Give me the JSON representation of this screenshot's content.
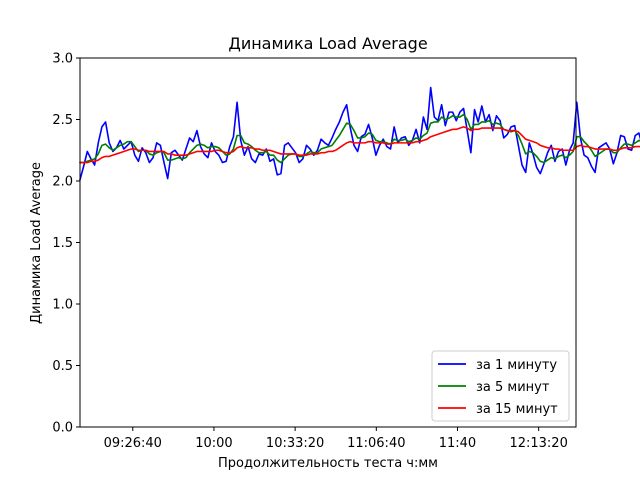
{
  "chart_data": {
    "type": "line",
    "title": "Динамика Load Average",
    "xlabel": "Продолжительность теста ч:мм",
    "ylabel": "Динамика Load Average",
    "ylim": [
      0,
      3.0
    ],
    "y_ticks": [
      "0.0",
      "0.5",
      "1.0",
      "1.5",
      "2.0",
      "2.5",
      "3.0"
    ],
    "x_range_seconds": [
      32700,
      44920
    ],
    "x_ticks": [
      {
        "label": "09:26:40",
        "value": 34000
      },
      {
        "label": "10:00",
        "value": 36000
      },
      {
        "label": "10:33:20",
        "value": 38000
      },
      {
        "label": "11:06:40",
        "value": 40000
      },
      {
        "label": "11:40",
        "value": 42000
      },
      {
        "label": "12:13:20",
        "value": 44000
      }
    ],
    "x_start": "09:05",
    "x_step_minutes": 1.5,
    "grid": false,
    "legend_position": "lower-right",
    "series": [
      {
        "name": "за 1 минуту",
        "color": "#0000ff",
        "values": [
          2.01,
          2.12,
          2.24,
          2.18,
          2.13,
          2.31,
          2.44,
          2.48,
          2.31,
          2.24,
          2.27,
          2.33,
          2.26,
          2.29,
          2.32,
          2.21,
          2.16,
          2.27,
          2.23,
          2.15,
          2.19,
          2.31,
          2.29,
          2.15,
          2.02,
          2.23,
          2.25,
          2.21,
          2.17,
          2.26,
          2.35,
          2.32,
          2.41,
          2.28,
          2.22,
          2.19,
          2.31,
          2.24,
          2.21,
          2.15,
          2.16,
          2.28,
          2.36,
          2.64,
          2.33,
          2.21,
          2.28,
          2.18,
          2.15,
          2.22,
          2.21,
          2.26,
          2.16,
          2.18,
          2.05,
          2.06,
          2.29,
          2.31,
          2.27,
          2.23,
          2.15,
          2.18,
          2.29,
          2.26,
          2.21,
          2.25,
          2.34,
          2.31,
          2.29,
          2.35,
          2.42,
          2.48,
          2.56,
          2.62,
          2.43,
          2.29,
          2.24,
          2.36,
          2.38,
          2.46,
          2.35,
          2.21,
          2.29,
          2.34,
          2.28,
          2.26,
          2.44,
          2.31,
          2.35,
          2.36,
          2.29,
          2.33,
          2.42,
          2.31,
          2.52,
          2.42,
          2.76,
          2.52,
          2.49,
          2.62,
          2.45,
          2.56,
          2.56,
          2.49,
          2.56,
          2.59,
          2.41,
          2.23,
          2.58,
          2.48,
          2.61,
          2.48,
          2.54,
          2.41,
          2.53,
          2.49,
          2.35,
          2.38,
          2.44,
          2.45,
          2.29,
          2.13,
          2.07,
          2.31,
          2.22,
          2.11,
          2.06,
          2.14,
          2.23,
          2.29,
          2.16,
          2.24,
          2.26,
          2.13,
          2.25,
          2.31,
          2.64,
          2.35,
          2.21,
          2.19,
          2.12,
          2.07,
          2.27,
          2.29,
          2.31,
          2.26,
          2.14,
          2.23,
          2.37,
          2.36,
          2.26,
          2.25,
          2.37,
          2.39,
          2.28,
          2.35,
          2.36,
          2.12,
          2.15,
          2.25
        ]
      },
      {
        "name": "за 5 минут",
        "color": "#008000",
        "values": [
          2.15,
          2.15,
          2.16,
          2.17,
          2.18,
          2.22,
          2.29,
          2.3,
          2.27,
          2.25,
          2.27,
          2.29,
          2.3,
          2.32,
          2.32,
          2.28,
          2.24,
          2.25,
          2.25,
          2.22,
          2.21,
          2.23,
          2.24,
          2.23,
          2.17,
          2.17,
          2.18,
          2.19,
          2.18,
          2.19,
          2.23,
          2.26,
          2.29,
          2.3,
          2.29,
          2.27,
          2.28,
          2.28,
          2.27,
          2.24,
          2.21,
          2.22,
          2.26,
          2.37,
          2.37,
          2.31,
          2.3,
          2.28,
          2.25,
          2.23,
          2.23,
          2.24,
          2.21,
          2.21,
          2.17,
          2.15,
          2.18,
          2.21,
          2.22,
          2.22,
          2.2,
          2.2,
          2.22,
          2.24,
          2.23,
          2.23,
          2.26,
          2.27,
          2.28,
          2.29,
          2.33,
          2.37,
          2.42,
          2.47,
          2.46,
          2.41,
          2.35,
          2.35,
          2.36,
          2.39,
          2.38,
          2.33,
          2.32,
          2.32,
          2.31,
          2.3,
          2.34,
          2.33,
          2.33,
          2.34,
          2.32,
          2.33,
          2.35,
          2.34,
          2.37,
          2.39,
          2.47,
          2.48,
          2.48,
          2.52,
          2.5,
          2.51,
          2.53,
          2.52,
          2.52,
          2.54,
          2.5,
          2.42,
          2.46,
          2.46,
          2.48,
          2.48,
          2.49,
          2.46,
          2.47,
          2.46,
          2.42,
          2.41,
          2.4,
          2.41,
          2.37,
          2.3,
          2.22,
          2.24,
          2.23,
          2.2,
          2.16,
          2.15,
          2.17,
          2.19,
          2.18,
          2.2,
          2.21,
          2.19,
          2.21,
          2.24,
          2.36,
          2.36,
          2.32,
          2.29,
          2.25,
          2.2,
          2.22,
          2.24,
          2.26,
          2.26,
          2.23,
          2.23,
          2.27,
          2.3,
          2.3,
          2.29,
          2.31,
          2.33,
          2.32,
          2.33,
          2.33,
          2.27,
          2.24,
          2.25
        ]
      },
      {
        "name": "за 15 минут",
        "color": "#ff0000",
        "values": [
          2.15,
          2.15,
          2.15,
          2.16,
          2.16,
          2.17,
          2.19,
          2.2,
          2.2,
          2.21,
          2.22,
          2.23,
          2.24,
          2.25,
          2.26,
          2.26,
          2.25,
          2.25,
          2.25,
          2.24,
          2.24,
          2.24,
          2.24,
          2.24,
          2.22,
          2.22,
          2.21,
          2.21,
          2.21,
          2.21,
          2.22,
          2.23,
          2.24,
          2.24,
          2.24,
          2.24,
          2.24,
          2.25,
          2.25,
          2.24,
          2.23,
          2.23,
          2.24,
          2.27,
          2.28,
          2.27,
          2.27,
          2.27,
          2.26,
          2.26,
          2.25,
          2.25,
          2.25,
          2.24,
          2.23,
          2.22,
          2.22,
          2.22,
          2.22,
          2.22,
          2.21,
          2.21,
          2.21,
          2.22,
          2.22,
          2.22,
          2.23,
          2.23,
          2.24,
          2.24,
          2.25,
          2.27,
          2.29,
          2.31,
          2.32,
          2.31,
          2.31,
          2.31,
          2.31,
          2.32,
          2.32,
          2.31,
          2.31,
          2.31,
          2.3,
          2.3,
          2.31,
          2.31,
          2.31,
          2.31,
          2.31,
          2.31,
          2.32,
          2.32,
          2.33,
          2.34,
          2.36,
          2.37,
          2.38,
          2.39,
          2.4,
          2.41,
          2.42,
          2.42,
          2.43,
          2.44,
          2.43,
          2.41,
          2.42,
          2.42,
          2.43,
          2.43,
          2.43,
          2.43,
          2.43,
          2.43,
          2.42,
          2.41,
          2.41,
          2.41,
          2.4,
          2.37,
          2.34,
          2.33,
          2.32,
          2.31,
          2.29,
          2.28,
          2.27,
          2.27,
          2.26,
          2.26,
          2.25,
          2.25,
          2.25,
          2.25,
          2.28,
          2.29,
          2.28,
          2.28,
          2.27,
          2.26,
          2.26,
          2.26,
          2.26,
          2.26,
          2.25,
          2.25,
          2.26,
          2.27,
          2.27,
          2.27,
          2.28,
          2.28,
          2.28,
          2.29,
          2.29,
          2.28,
          2.27,
          2.27
        ]
      }
    ]
  }
}
